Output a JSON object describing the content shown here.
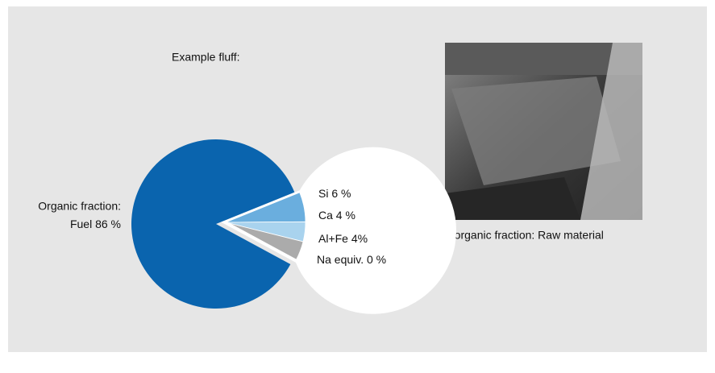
{
  "chart_data": {
    "type": "pie",
    "title": "Example fluff:",
    "group_label": "Organic fraction:",
    "categories": [
      "Fuel",
      "Si",
      "Ca",
      "Al+Fe",
      "Na equiv."
    ],
    "values": [
      86,
      6,
      4,
      4,
      0
    ],
    "value_labels": [
      "86 %",
      "6 %",
      "4 %",
      "4%",
      "0 %"
    ],
    "colors": [
      "#0a64ae",
      "#6aaede",
      "#a9d3ee",
      "#ababab",
      "#ffffff"
    ],
    "photo_caption": "Inorganic fraction: Raw material"
  }
}
